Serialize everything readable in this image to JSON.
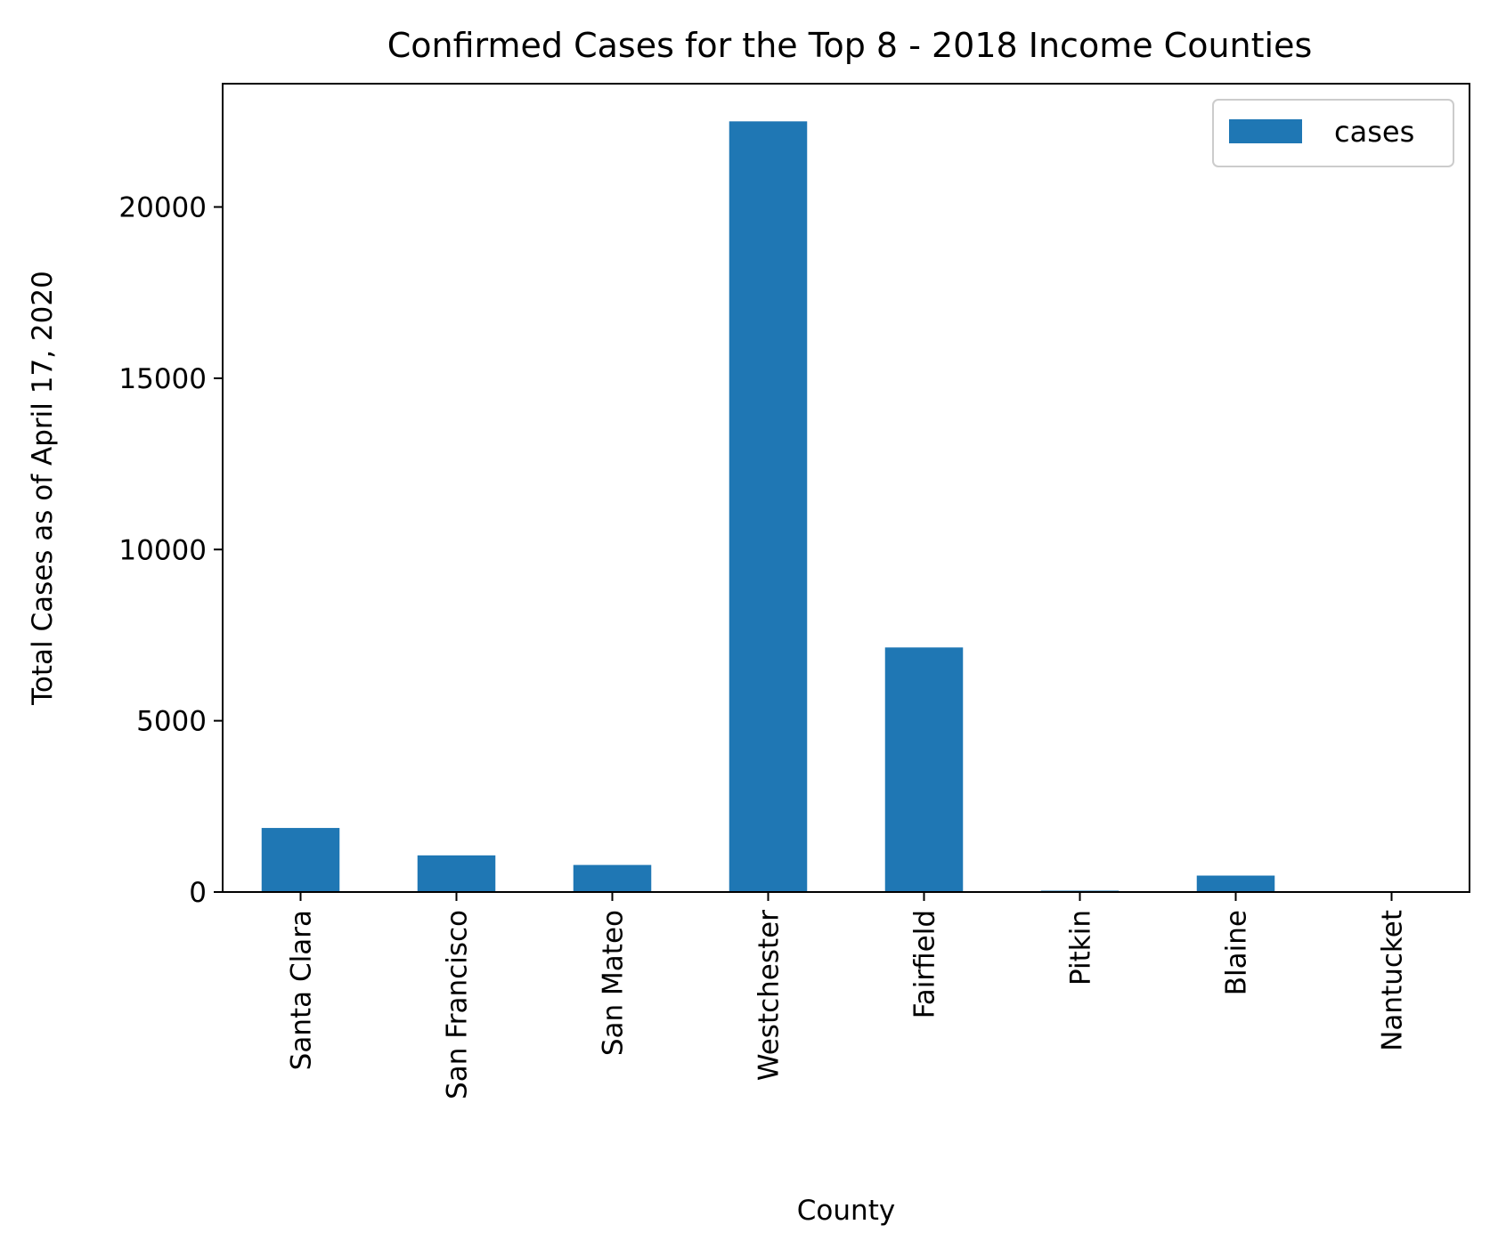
{
  "chart_data": {
    "type": "bar",
    "title": "Confirmed Cases for the Top 8 - 2018 Income Counties",
    "xlabel": "County",
    "ylabel": "Total Cases as of April 17, 2020",
    "categories": [
      "Santa Clara",
      "San Francisco",
      "San Mateo",
      "Westchester",
      "Fairfield",
      "Pitkin",
      "Blaine",
      "Nantucket"
    ],
    "series": [
      {
        "name": "cases",
        "values": [
          1870,
          1070,
          790,
          22500,
          7140,
          40,
          480,
          10
        ],
        "color": "#1f77b4"
      }
    ],
    "ylim": [
      0,
      23600
    ],
    "yticks": [
      0,
      5000,
      10000,
      15000,
      20000
    ],
    "ytick_labels": [
      "0",
      "5000",
      "10000",
      "15000",
      "20000"
    ],
    "grid": false,
    "legend_position": "top-right"
  }
}
